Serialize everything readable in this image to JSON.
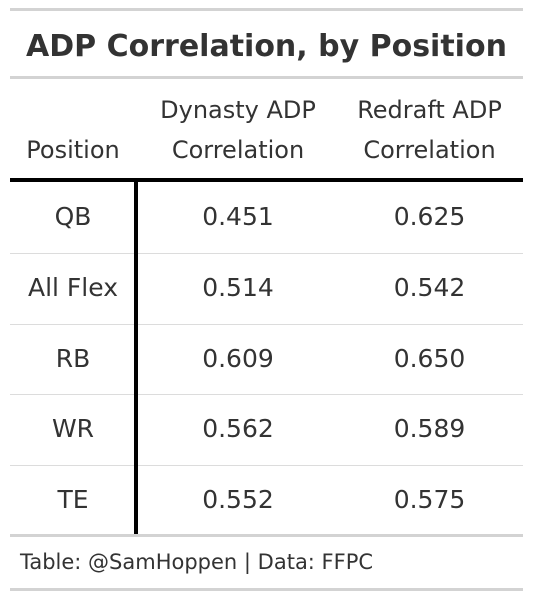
{
  "chart_data": {
    "type": "table",
    "title": "ADP Correlation, by Position",
    "columns": [
      {
        "label_line1": "",
        "label_line2": "Position"
      },
      {
        "label_line1": "Dynasty ADP",
        "label_line2": "Correlation"
      },
      {
        "label_line1": "Redraft ADP",
        "label_line2": "Correlation"
      }
    ],
    "rows": [
      {
        "position": "QB",
        "dynasty": "0.451",
        "redraft": "0.625"
      },
      {
        "position": "All Flex",
        "dynasty": "0.514",
        "redraft": "0.542"
      },
      {
        "position": "RB",
        "dynasty": "0.609",
        "redraft": "0.650"
      },
      {
        "position": "WR",
        "dynasty": "0.562",
        "redraft": "0.589"
      },
      {
        "position": "TE",
        "dynasty": "0.552",
        "redraft": "0.575"
      }
    ],
    "source_note": "Table: @SamHoppen | Data: FFPC"
  }
}
